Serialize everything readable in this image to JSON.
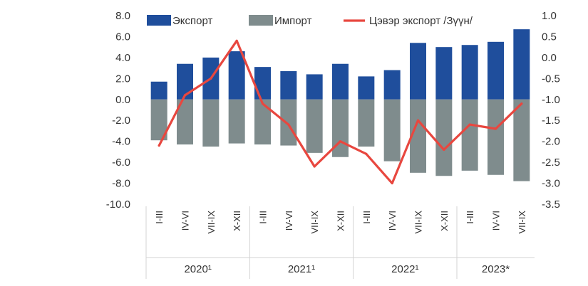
{
  "chart_data": {
    "type": "bar",
    "categories": [
      "I-III",
      "IV-VI",
      "VII-IX",
      "X-XII",
      "I-III",
      "IV-VI",
      "VII-IX",
      "X-XII",
      "I-III",
      "IV-VI",
      "VII-IX",
      "X-XII",
      "I-III",
      "IV-VI",
      "VII-IX"
    ],
    "groups": [
      {
        "label": "2020¹",
        "count": 4
      },
      {
        "label": "2021¹",
        "count": 4
      },
      {
        "label": "2022¹",
        "count": 4
      },
      {
        "label": "2023*",
        "count": 3
      }
    ],
    "series": [
      {
        "name": "Экспорт",
        "type": "bar",
        "axis": "left",
        "color": "#1f4e9c",
        "values": [
          1.7,
          3.4,
          4.0,
          4.6,
          3.1,
          2.7,
          2.4,
          3.4,
          2.2,
          2.8,
          5.4,
          5.0,
          5.2,
          5.5,
          6.7
        ]
      },
      {
        "name": "Импорт",
        "type": "bar",
        "axis": "left",
        "color": "#7f8c8d",
        "values": [
          -3.9,
          -4.3,
          -4.5,
          -4.2,
          -4.3,
          -4.4,
          -5.1,
          -5.5,
          -4.5,
          -5.9,
          -7.0,
          -7.3,
          -6.8,
          -7.2,
          -7.8
        ]
      },
      {
        "name": "Цэвэр экспорт /Зүүн/",
        "type": "line",
        "axis": "right",
        "color": "#e8473f",
        "values": [
          -2.1,
          -0.9,
          -0.5,
          0.4,
          -1.1,
          -1.6,
          -2.6,
          -2.0,
          -2.3,
          -3.0,
          -1.5,
          -2.2,
          -1.6,
          -1.7,
          -1.1
        ]
      }
    ],
    "y_left": {
      "min": -10,
      "max": 8,
      "ticks": [
        "8.0",
        "6.0",
        "4.0",
        "2.0",
        "0.0",
        "-2.0",
        "-4.0",
        "-6.0",
        "-8.0",
        "-10.0"
      ]
    },
    "y_right": {
      "min": -3.5,
      "max": 1.0,
      "ticks": [
        "1.0",
        "0.5",
        "0.0",
        "-0.5",
        "-1.0",
        "-1.5",
        "-2.0",
        "-2.5",
        "-3.0",
        "-3.5"
      ]
    },
    "legend_position": "top"
  }
}
